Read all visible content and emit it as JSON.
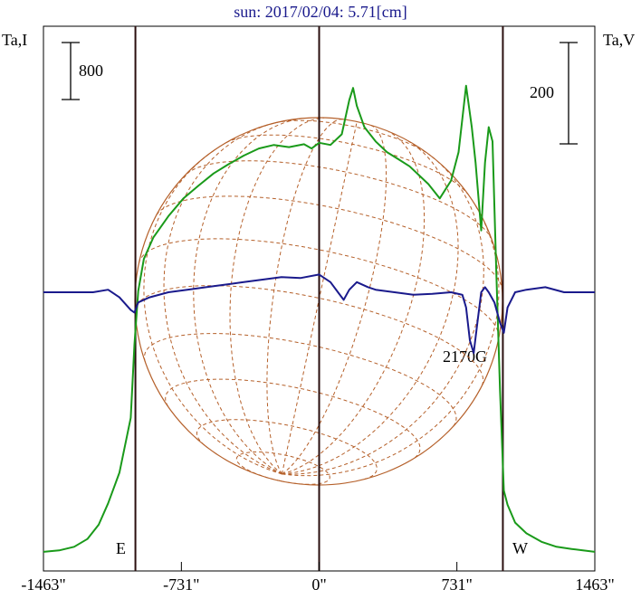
{
  "title": "sun: 2017/02/04: 5.71[cm]",
  "left_axis_label": "Ta,I",
  "right_axis_label": "Ta,V",
  "scale_bars": {
    "intensity": "800",
    "polarization": "200"
  },
  "limb_labels": {
    "east": "E",
    "west": "W"
  },
  "annotation": "2170G",
  "colors": {
    "intensity": "#1a9a1a",
    "polarization": "#1a1a8c",
    "limb": "#2a0f0f",
    "grid": "#b5602a",
    "title": "#1a1a8c"
  },
  "chart_data": {
    "type": "line",
    "title": "sun: 2017/02/04: 5.71[cm]",
    "xlabel": "",
    "x_ticks": [
      "-1463\"",
      "-731\"",
      "0\"",
      "731\"",
      "1463\""
    ],
    "x_tick_values": [
      -1463,
      -731,
      0,
      731,
      1463
    ],
    "xlim": [
      -1463,
      1463
    ],
    "limb_lines_arcsec": [
      -975,
      0,
      975
    ],
    "series": [
      {
        "name": "I",
        "x": [
          -1463,
          -1380,
          -1300,
          -1230,
          -1170,
          -1120,
          -1060,
          -1000,
          -980,
          -960,
          -930,
          -880,
          -800,
          -720,
          -640,
          -560,
          -480,
          -400,
          -320,
          -240,
          -160,
          -80,
          -40,
          0,
          60,
          120,
          160,
          180,
          200,
          240,
          300,
          360,
          420,
          480,
          540,
          580,
          640,
          700,
          740,
          780,
          810,
          830,
          860,
          880,
          900,
          920,
          940,
          960,
          980,
          1000,
          1040,
          1100,
          1180,
          1260,
          1340,
          1400,
          1463
        ],
        "y": [
          40,
          60,
          110,
          220,
          420,
          720,
          1150,
          1920,
          2950,
          3700,
          4150,
          4450,
          4750,
          5000,
          5180,
          5350,
          5480,
          5600,
          5700,
          5750,
          5720,
          5760,
          5700,
          5780,
          5750,
          5900,
          6380,
          6550,
          6300,
          6000,
          5800,
          5650,
          5550,
          5450,
          5300,
          5200,
          5000,
          5250,
          5650,
          6580,
          6000,
          5500,
          4550,
          5500,
          6000,
          5800,
          4000,
          2300,
          900,
          700,
          450,
          300,
          180,
          110,
          80,
          60,
          40
        ],
        "unit_per_scale_bar": 800
      },
      {
        "name": "V",
        "x": [
          -1463,
          -1200,
          -1120,
          -1060,
          -1000,
          -980,
          -960,
          -900,
          -800,
          -700,
          -600,
          -500,
          -400,
          -300,
          -200,
          -100,
          0,
          60,
          100,
          130,
          160,
          200,
          260,
          300,
          400,
          500,
          600,
          700,
          760,
          780,
          800,
          820,
          840,
          860,
          880,
          900,
          930,
          960,
          980,
          1000,
          1040,
          1100,
          1200,
          1300,
          1463
        ],
        "y": [
          0,
          0,
          5,
          -10,
          -35,
          -40,
          -20,
          -10,
          0,
          5,
          10,
          15,
          20,
          25,
          30,
          28,
          35,
          20,
          0,
          -15,
          5,
          20,
          10,
          5,
          0,
          -5,
          -3,
          0,
          -5,
          -30,
          -95,
          -120,
          -60,
          0,
          10,
          0,
          -20,
          -60,
          -80,
          -30,
          0,
          5,
          10,
          0,
          0
        ],
        "unit_per_scale_bar": 200
      }
    ]
  }
}
